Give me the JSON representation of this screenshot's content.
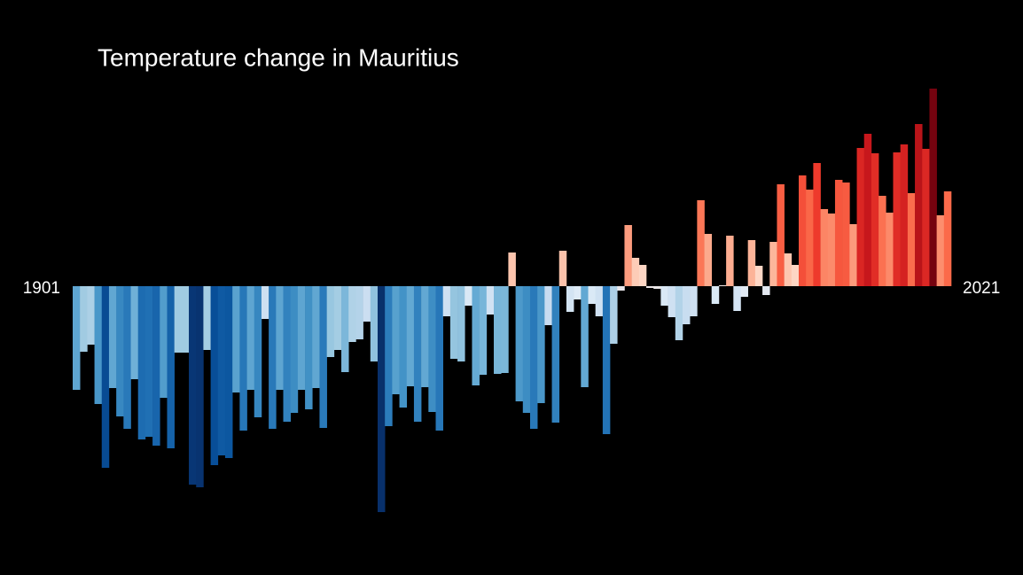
{
  "chart_data": {
    "type": "bar",
    "title": "Temperature change in Mauritius",
    "x": [
      1901,
      1902,
      1903,
      1904,
      1905,
      1906,
      1907,
      1908,
      1909,
      1910,
      1911,
      1912,
      1913,
      1914,
      1915,
      1916,
      1917,
      1918,
      1919,
      1920,
      1921,
      1922,
      1923,
      1924,
      1925,
      1926,
      1927,
      1928,
      1929,
      1930,
      1931,
      1932,
      1933,
      1934,
      1935,
      1936,
      1937,
      1938,
      1939,
      1940,
      1941,
      1942,
      1943,
      1944,
      1945,
      1946,
      1947,
      1948,
      1949,
      1950,
      1951,
      1952,
      1953,
      1954,
      1955,
      1956,
      1957,
      1958,
      1959,
      1960,
      1961,
      1962,
      1963,
      1964,
      1965,
      1966,
      1967,
      1968,
      1969,
      1970,
      1971,
      1972,
      1973,
      1974,
      1975,
      1976,
      1977,
      1978,
      1979,
      1980,
      1981,
      1982,
      1983,
      1984,
      1985,
      1986,
      1987,
      1988,
      1989,
      1990,
      1991,
      1992,
      1993,
      1994,
      1995,
      1996,
      1997,
      1998,
      1999,
      2000,
      2001,
      2002,
      2003,
      2004,
      2005,
      2006,
      2007,
      2008,
      2009,
      2010,
      2011,
      2012,
      2013,
      2014,
      2015,
      2016,
      2017,
      2018,
      2019,
      2020,
      2021
    ],
    "values": [
      -1.17,
      -0.74,
      -0.66,
      -1.33,
      -2.05,
      -1.15,
      -1.47,
      -1.61,
      -1.05,
      -1.73,
      -1.7,
      -1.8,
      -1.26,
      -1.83,
      -0.75,
      -0.75,
      -2.24,
      -2.27,
      -0.72,
      -2.02,
      -1.91,
      -1.94,
      -1.2,
      -1.63,
      -1.17,
      -1.48,
      -0.37,
      -1.61,
      -1.17,
      -1.53,
      -1.43,
      -1.17,
      -1.39,
      -1.15,
      -1.6,
      -0.8,
      -0.72,
      -0.97,
      -0.63,
      -0.6,
      -0.4,
      -0.85,
      -2.55,
      -1.58,
      -1.22,
      -1.37,
      -1.13,
      -1.53,
      -1.14,
      -1.42,
      -1.63,
      -0.34,
      -0.82,
      -0.85,
      -0.22,
      -1.12,
      -1.0,
      -0.32,
      -0.99,
      -0.98,
      0.38,
      -1.3,
      -1.43,
      -1.61,
      -1.32,
      -0.44,
      -1.54,
      0.4,
      -0.29,
      -0.15,
      -1.14,
      -0.2,
      -0.34,
      -1.67,
      -0.65,
      -0.05,
      0.69,
      0.32,
      0.24,
      -0.02,
      -0.03,
      -0.22,
      -0.35,
      -0.61,
      -0.43,
      -0.34,
      0.97,
      0.59,
      -0.2,
      0.01,
      0.57,
      -0.28,
      -0.12,
      0.52,
      0.23,
      -0.1,
      0.5,
      1.15,
      0.37,
      0.24,
      1.25,
      1.09,
      1.39,
      0.87,
      0.82,
      1.2,
      1.17,
      0.7,
      1.56,
      1.72,
      1.5,
      1.02,
      0.83,
      1.51,
      1.6,
      1.05,
      1.83,
      1.55,
      2.23,
      0.8,
      1.07
    ],
    "xlim": [
      1900.5,
      2021.5
    ],
    "ylim": [
      -3.26,
      3.23
    ],
    "colormap": [
      "#08306b",
      "#08519c",
      "#2171b5",
      "#4292c6",
      "#6baed6",
      "#9ecae1",
      "#c6dbef",
      "#deebf7",
      "#fee0d2",
      "#fcbba1",
      "#fc9272",
      "#fb6a4a",
      "#ef3b2c",
      "#cb181d",
      "#a50f15",
      "#67000d"
    ],
    "color_limits": [
      -2.3,
      2.3
    ]
  }
}
